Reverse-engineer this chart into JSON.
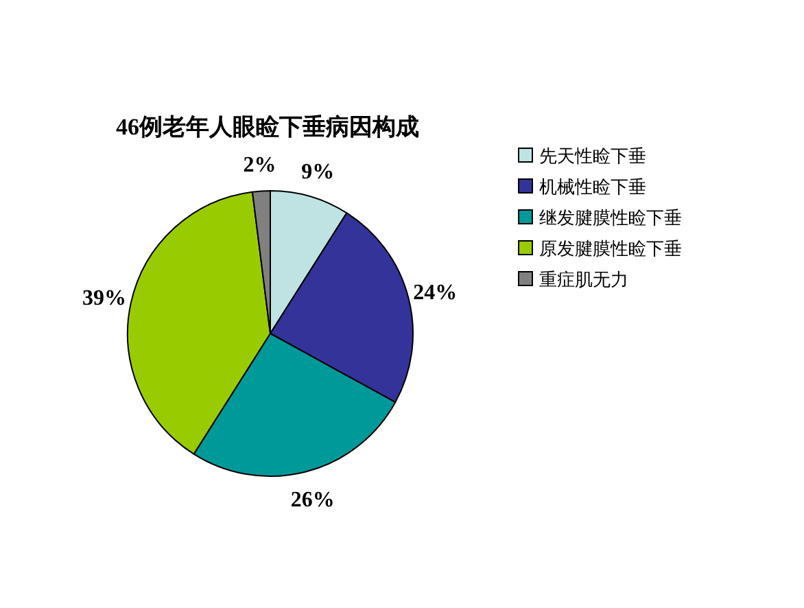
{
  "chart_data": {
    "type": "pie",
    "title": "46例老年人眼睑下垂病因构成",
    "categories": [
      "先天性睑下垂",
      "机械性睑下垂",
      "继发腱膜性睑下垂",
      "原发腱膜性睑下垂",
      "重症肌无力"
    ],
    "values": [
      9,
      24,
      26,
      39,
      2
    ],
    "colors": [
      "#bfe3e3",
      "#333399",
      "#009999",
      "#99cc00",
      "#808080"
    ],
    "value_labels": [
      "9%",
      "24%",
      "26%",
      "39%",
      "2%"
    ],
    "legend": "right"
  }
}
